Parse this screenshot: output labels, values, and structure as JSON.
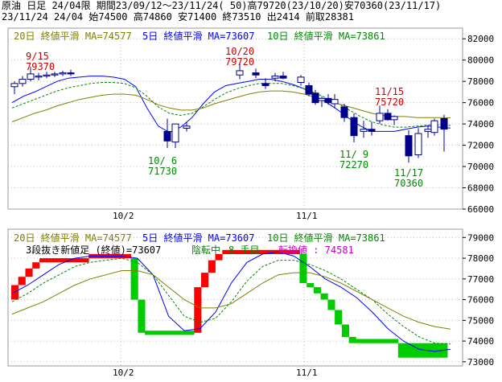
{
  "header": {
    "line1": "原油 日足 24/04限 期間23/09/12～23/11/24( 50)高79720(23/10/20)安70360(23/11/17)",
    "line2": "23/11/24 24/04 始74500 高74860 安71400 終73510 出2414 前取28381"
  },
  "ma_legend": {
    "ma20": "20日 終値平滑 MA=74577",
    "ma5": "5日 終値平滑 MA=73607",
    "ma10": "10日 終値平滑 MA=73861"
  },
  "lower_info": {
    "main": "3段抜き新値足 (終値)=73607",
    "status": "陰転中",
    "count": "8 手目",
    "switch": "転換値 : 74581"
  },
  "colors": {
    "ma5": "#0000ff",
    "ma10": "#008800",
    "ma20": "#808000",
    "annotation_high": "#cc0000",
    "annotation_low": "#008800",
    "brick_up": "#ff0000",
    "brick_down": "#00cc00",
    "switch_text": "#cc00cc"
  },
  "upper_axis": {
    "labels": [
      "82000",
      "80000",
      "78000",
      "76000",
      "74000",
      "72000",
      "70000",
      "68000",
      "66000"
    ],
    "x_labels": [
      "10/2",
      "11/1"
    ]
  },
  "lower_axis": {
    "labels": [
      "79000",
      "78000",
      "77000",
      "76000",
      "75000",
      "74000",
      "73000"
    ],
    "x_labels": [
      "10/2",
      "11/1"
    ]
  },
  "annotations": [
    {
      "date": "9/15",
      "value": "79370",
      "kind": "high"
    },
    {
      "date": "10/20",
      "value": "79720",
      "kind": "high"
    },
    {
      "date": "11/15",
      "value": "75720",
      "kind": "high"
    },
    {
      "date": "10/ 6",
      "value": "71730",
      "kind": "low"
    },
    {
      "date": "11/ 9",
      "value": "72270",
      "kind": "low"
    },
    {
      "date": "11/17",
      "value": "70360",
      "kind": "low"
    }
  ],
  "chart_data": [
    {
      "type": "candlestick",
      "ylim": [
        66000,
        83000
      ],
      "series": [
        {
          "name": "5日 終値平滑",
          "values": [
            76000,
            76600,
            77000,
            77500,
            78000,
            78300,
            78400,
            78500,
            78500,
            78400,
            78200,
            77500,
            75500,
            73800,
            73200,
            73700,
            74600,
            75900,
            77000,
            77600,
            77800,
            78000,
            78200,
            78200,
            78000,
            77700,
            77300,
            76600,
            76000,
            75300,
            74500,
            73800,
            73300,
            73300,
            73300,
            73500,
            73700,
            73800,
            73700,
            73607
          ]
        },
        {
          "name": "10日 終値平滑",
          "values": [
            75500,
            75900,
            76300,
            76700,
            77100,
            77400,
            77600,
            77800,
            77900,
            77900,
            77800,
            77400,
            76600,
            75600,
            75000,
            74800,
            75000,
            75600,
            76300,
            76900,
            77300,
            77600,
            77800,
            77800,
            77800,
            77600,
            77300,
            76900,
            76400,
            75900,
            75300,
            74700,
            74200,
            73900,
            73700,
            73700,
            73800,
            73900,
            73900,
            73861
          ]
        },
        {
          "name": "20日 終値平滑",
          "values": [
            74200,
            74600,
            75000,
            75300,
            75700,
            76000,
            76300,
            76500,
            76700,
            76800,
            76800,
            76700,
            76300,
            75800,
            75500,
            75300,
            75300,
            75500,
            75900,
            76200,
            76500,
            76800,
            77000,
            77100,
            77100,
            77000,
            76800,
            76500,
            76200,
            75900,
            75600,
            75300,
            75000,
            74800,
            74700,
            74700,
            74600,
            74600,
            74600,
            74577
          ]
        }
      ],
      "candles": [
        {
          "o": 77500,
          "h": 78000,
          "l": 76800,
          "c": 77800
        },
        {
          "o": 77800,
          "h": 78500,
          "l": 77500,
          "c": 78200
        },
        {
          "o": 78200,
          "h": 79370,
          "l": 78000,
          "c": 78700
        },
        {
          "o": 78400,
          "h": 78800,
          "l": 78100,
          "c": 78500
        },
        {
          "o": 78500,
          "h": 78900,
          "l": 78300,
          "c": 78600
        },
        {
          "o": 78600,
          "h": 78900,
          "l": 78400,
          "c": 78700
        },
        {
          "o": 78700,
          "h": 79000,
          "l": 78500,
          "c": 78800
        },
        {
          "o": 78800,
          "h": 79100,
          "l": 78500,
          "c": 78700
        },
        {
          "o": 73300,
          "h": 74500,
          "l": 71730,
          "c": 72400
        },
        {
          "o": 72300,
          "h": 74000,
          "l": 71730,
          "c": 74000
        },
        {
          "o": 73600,
          "h": 74200,
          "l": 73300,
          "c": 73800
        },
        {
          "o": 78600,
          "h": 79720,
          "l": 78200,
          "c": 79000
        },
        {
          "o": 78800,
          "h": 79200,
          "l": 78300,
          "c": 78600
        },
        {
          "o": 77800,
          "h": 78300,
          "l": 77300,
          "c": 77600
        },
        {
          "o": 78300,
          "h": 78800,
          "l": 78000,
          "c": 78500
        },
        {
          "o": 78500,
          "h": 78900,
          "l": 78200,
          "c": 78300
        },
        {
          "o": 77900,
          "h": 78600,
          "l": 77600,
          "c": 78400
        },
        {
          "o": 77600,
          "h": 77900,
          "l": 76600,
          "c": 76800
        },
        {
          "o": 76900,
          "h": 77200,
          "l": 75800,
          "c": 76000
        },
        {
          "o": 76200,
          "h": 76600,
          "l": 75600,
          "c": 76400
        },
        {
          "o": 76400,
          "h": 76800,
          "l": 75800,
          "c": 76000
        },
        {
          "o": 75900,
          "h": 76800,
          "l": 75500,
          "c": 76300
        },
        {
          "o": 75600,
          "h": 75900,
          "l": 74200,
          "c": 74600
        },
        {
          "o": 74600,
          "h": 75000,
          "l": 72270,
          "c": 72900
        },
        {
          "o": 73300,
          "h": 74300,
          "l": 72700,
          "c": 73500
        },
        {
          "o": 73500,
          "h": 74200,
          "l": 72900,
          "c": 73300
        },
        {
          "o": 74300,
          "h": 75720,
          "l": 74000,
          "c": 75000
        },
        {
          "o": 75000,
          "h": 75400,
          "l": 74300,
          "c": 74400
        },
        {
          "o": 74400,
          "h": 74800,
          "l": 73900,
          "c": 74700
        },
        {
          "o": 72900,
          "h": 73400,
          "l": 70360,
          "c": 71000
        },
        {
          "o": 71100,
          "h": 73600,
          "l": 70800,
          "c": 73100
        },
        {
          "o": 73300,
          "h": 73900,
          "l": 72700,
          "c": 73500
        },
        {
          "o": 73200,
          "h": 74500,
          "l": 72900,
          "c": 74300
        },
        {
          "o": 74500,
          "h": 74860,
          "l": 71400,
          "c": 73510
        }
      ]
    },
    {
      "type": "bar",
      "title": "3段抜き新値足 (終値)",
      "ylim": [
        72800,
        79400
      ],
      "bricks": [
        {
          "lo": 76000,
          "hi": 76700,
          "dir": "up"
        },
        {
          "lo": 76700,
          "hi": 77100,
          "dir": "up"
        },
        {
          "lo": 77100,
          "hi": 77500,
          "dir": "up"
        },
        {
          "lo": 77500,
          "hi": 77800,
          "dir": "up"
        },
        {
          "lo": 77800,
          "hi": 78000,
          "dir": "up"
        },
        {
          "lo": 77800,
          "hi": 78000,
          "dir": "up"
        },
        {
          "lo": 77800,
          "hi": 78000,
          "dir": "up"
        },
        {
          "lo": 77800,
          "hi": 78000,
          "dir": "up"
        },
        {
          "lo": 77800,
          "hi": 78000,
          "dir": "up"
        },
        {
          "lo": 77800,
          "hi": 78000,
          "dir": "up"
        },
        {
          "lo": 77800,
          "hi": 78000,
          "dir": "up"
        },
        {
          "lo": 78000,
          "hi": 78200,
          "dir": "up"
        },
        {
          "lo": 78000,
          "hi": 78200,
          "dir": "up"
        },
        {
          "lo": 78000,
          "hi": 78200,
          "dir": "up"
        },
        {
          "lo": 78000,
          "hi": 78200,
          "dir": "up"
        },
        {
          "lo": 78000,
          "hi": 78200,
          "dir": "up"
        },
        {
          "lo": 78000,
          "hi": 78200,
          "dir": "up"
        },
        {
          "lo": 76000,
          "hi": 78000,
          "dir": "down"
        },
        {
          "lo": 74400,
          "hi": 76000,
          "dir": "down"
        },
        {
          "lo": 74300,
          "hi": 74500,
          "dir": "down"
        },
        {
          "lo": 74300,
          "hi": 74500,
          "dir": "down"
        },
        {
          "lo": 74300,
          "hi": 74500,
          "dir": "down"
        },
        {
          "lo": 74300,
          "hi": 74500,
          "dir": "down"
        },
        {
          "lo": 74300,
          "hi": 74500,
          "dir": "down"
        },
        {
          "lo": 74300,
          "hi": 74500,
          "dir": "down"
        },
        {
          "lo": 74300,
          "hi": 74500,
          "dir": "down"
        },
        {
          "lo": 74400,
          "hi": 76600,
          "dir": "up"
        },
        {
          "lo": 76600,
          "hi": 77300,
          "dir": "up"
        },
        {
          "lo": 77300,
          "hi": 77900,
          "dir": "up"
        },
        {
          "lo": 77900,
          "hi": 78200,
          "dir": "up"
        },
        {
          "lo": 78200,
          "hi": 78400,
          "dir": "up"
        },
        {
          "lo": 78200,
          "hi": 78400,
          "dir": "up"
        },
        {
          "lo": 78200,
          "hi": 78400,
          "dir": "up"
        },
        {
          "lo": 78200,
          "hi": 78400,
          "dir": "up"
        },
        {
          "lo": 78200,
          "hi": 78400,
          "dir": "up"
        },
        {
          "lo": 78200,
          "hi": 78400,
          "dir": "up"
        },
        {
          "lo": 78200,
          "hi": 78400,
          "dir": "up"
        },
        {
          "lo": 78200,
          "hi": 78400,
          "dir": "up"
        },
        {
          "lo": 78200,
          "hi": 78400,
          "dir": "up"
        },
        {
          "lo": 78200,
          "hi": 78400,
          "dir": "up"
        },
        {
          "lo": 78200,
          "hi": 78400,
          "dir": "up"
        },
        {
          "lo": 76800,
          "hi": 78200,
          "dir": "down"
        },
        {
          "lo": 76600,
          "hi": 76800,
          "dir": "down"
        },
        {
          "lo": 76300,
          "hi": 76600,
          "dir": "down"
        },
        {
          "lo": 76000,
          "hi": 76300,
          "dir": "down"
        },
        {
          "lo": 75500,
          "hi": 76000,
          "dir": "down"
        },
        {
          "lo": 74800,
          "hi": 75500,
          "dir": "down"
        },
        {
          "lo": 74200,
          "hi": 74800,
          "dir": "down"
        },
        {
          "lo": 73900,
          "hi": 74200,
          "dir": "down"
        },
        {
          "lo": 73900,
          "hi": 74100,
          "dir": "down"
        },
        {
          "lo": 73900,
          "hi": 74100,
          "dir": "down"
        },
        {
          "lo": 73900,
          "hi": 74100,
          "dir": "down"
        },
        {
          "lo": 73900,
          "hi": 74100,
          "dir": "down"
        },
        {
          "lo": 73900,
          "hi": 74100,
          "dir": "down"
        },
        {
          "lo": 73900,
          "hi": 74100,
          "dir": "down"
        },
        {
          "lo": 73200,
          "hi": 73900,
          "dir": "down"
        },
        {
          "lo": 73200,
          "hi": 73900,
          "dir": "down"
        },
        {
          "lo": 73200,
          "hi": 73900,
          "dir": "down"
        },
        {
          "lo": 73200,
          "hi": 73900,
          "dir": "down"
        },
        {
          "lo": 73200,
          "hi": 73900,
          "dir": "down"
        },
        {
          "lo": 73200,
          "hi": 73900,
          "dir": "down"
        },
        {
          "lo": 73200,
          "hi": 73900,
          "dir": "down"
        }
      ],
      "series": [
        {
          "name": "5日 終値平滑",
          "values": [
            76300,
            76700,
            77200,
            77700,
            78000,
            78100,
            78100,
            78100,
            78000,
            77200,
            75200,
            74500,
            74600,
            75400,
            76800,
            77800,
            78200,
            78300,
            78100,
            77600,
            77000,
            76600,
            76100,
            75400,
            74600,
            74000,
            73600,
            73500,
            73607
          ]
        },
        {
          "name": "10日 終値平滑",
          "values": [
            75900,
            76300,
            76800,
            77200,
            77600,
            77800,
            77900,
            78000,
            77800,
            77200,
            76200,
            75200,
            74900,
            75100,
            75900,
            76900,
            77600,
            77900,
            77900,
            77700,
            77400,
            77000,
            76500,
            76000,
            75300,
            74700,
            74200,
            73900,
            73861
          ]
        },
        {
          "name": "20日 終値平滑",
          "values": [
            75300,
            75600,
            75900,
            76300,
            76700,
            77000,
            77200,
            77400,
            77400,
            77200,
            76600,
            76000,
            75600,
            75600,
            75800,
            76300,
            76800,
            77200,
            77300,
            77300,
            77100,
            76800,
            76400,
            76000,
            75600,
            75200,
            74900,
            74700,
            74577
          ]
        }
      ]
    }
  ]
}
